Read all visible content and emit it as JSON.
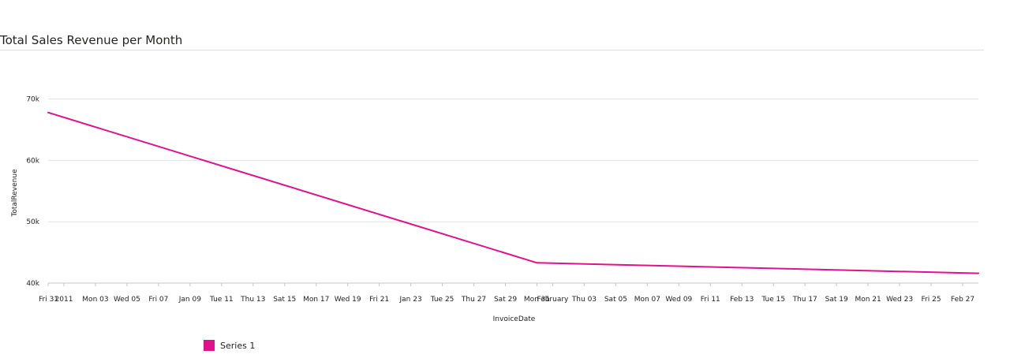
{
  "title": "Total Sales Revenue per Month",
  "legend": {
    "series_label": "Series 1"
  },
  "colors": {
    "series": "#e0118d",
    "grid": "#e1e1e1",
    "axis": "#c8c6c4"
  },
  "chart_data": {
    "type": "line",
    "title": "Total Sales Revenue per Month",
    "xlabel": "InvoiceDate",
    "ylabel": "TotalRevenue",
    "xlim": [
      "2010-12-31",
      "2011-02-28"
    ],
    "ylim": [
      40000,
      72000
    ],
    "y_ticks": [
      40000,
      50000,
      60000,
      70000
    ],
    "y_tick_labels": [
      "40k",
      "50k",
      "60k",
      "70k"
    ],
    "x_ticks": [
      "2010-12-31",
      "2011-01-01",
      "2011-01-03",
      "2011-01-05",
      "2011-01-07",
      "2011-01-09",
      "2011-01-11",
      "2011-01-13",
      "2011-01-15",
      "2011-01-17",
      "2011-01-19",
      "2011-01-21",
      "2011-01-23",
      "2011-01-25",
      "2011-01-27",
      "2011-01-29",
      "2011-01-31",
      "2011-02-01",
      "2011-02-03",
      "2011-02-05",
      "2011-02-07",
      "2011-02-09",
      "2011-02-11",
      "2011-02-13",
      "2011-02-15",
      "2011-02-17",
      "2011-02-19",
      "2011-02-21",
      "2011-02-23",
      "2011-02-25",
      "2011-02-27"
    ],
    "x_tick_labels": [
      "Fri 31",
      "2011",
      "Mon 03",
      "Wed 05",
      "Fri 07",
      "Jan 09",
      "Tue 11",
      "Thu 13",
      "Sat 15",
      "Mon 17",
      "Wed 19",
      "Fri 21",
      "Jan 23",
      "Tue 25",
      "Thu 27",
      "Sat 29",
      "Mon 31",
      "February",
      "Thu 03",
      "Sat 05",
      "Mon 07",
      "Wed 09",
      "Fri 11",
      "Feb 13",
      "Tue 15",
      "Thu 17",
      "Sat 19",
      "Mon 21",
      "Wed 23",
      "Fri 25",
      "Feb 27"
    ],
    "grid": true,
    "legend_position": "bottom-left",
    "series": [
      {
        "name": "Series 1",
        "x": [
          "2010-12-31",
          "2011-01-31",
          "2011-02-28"
        ],
        "values": [
          67800,
          43300,
          41600
        ]
      }
    ]
  }
}
